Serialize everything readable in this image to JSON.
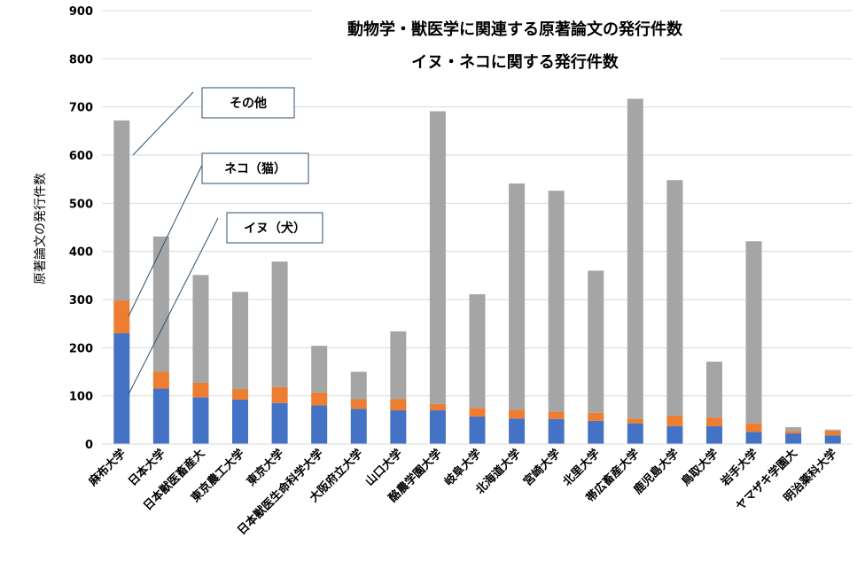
{
  "chart_data": {
    "type": "bar",
    "stacked": true,
    "title": "動物学・獣医学に関連する原著論文の発行件数",
    "subtitle": "イヌ・ネコに関する発行件数",
    "ylabel": "原著論文の発行件数",
    "ylim": [
      0,
      900
    ],
    "yticks": [
      0,
      100,
      200,
      300,
      400,
      500,
      600,
      700,
      800,
      900
    ],
    "grid": true,
    "legend_position": "callouts-left",
    "categories": [
      "麻布大学",
      "日本大学",
      "日本獣医畜産大",
      "東京農工大学",
      "東京大学",
      "日本獣医生命科学大学",
      "大阪府立大学",
      "山口大学",
      "酪農学園大学",
      "岐阜大学",
      "北海道大学",
      "宮崎大学",
      "北里大学",
      "帯広畜産大学",
      "鹿児島大学",
      "鳥取大学",
      "岩手大学",
      "ヤマザキ学園大",
      "明治薬科大学"
    ],
    "series": [
      {
        "name": "イヌ（犬）",
        "color": "#4472c4",
        "values": [
          230,
          115,
          97,
          92,
          85,
          80,
          73,
          70,
          70,
          57,
          53,
          52,
          48,
          43,
          37,
          37,
          25,
          22,
          18
        ]
      },
      {
        "name": "ネコ（猫）",
        "color": "#ed7d31",
        "values": [
          68,
          35,
          30,
          22,
          33,
          27,
          20,
          23,
          13,
          18,
          18,
          15,
          17,
          10,
          22,
          18,
          18,
          5,
          10
        ]
      },
      {
        "name": "その他",
        "color": "#a5a5a5",
        "values": [
          374,
          281,
          224,
          202,
          261,
          97,
          57,
          141,
          608,
          236,
          470,
          459,
          295,
          664,
          489,
          116,
          378,
          8,
          2
        ]
      }
    ]
  }
}
